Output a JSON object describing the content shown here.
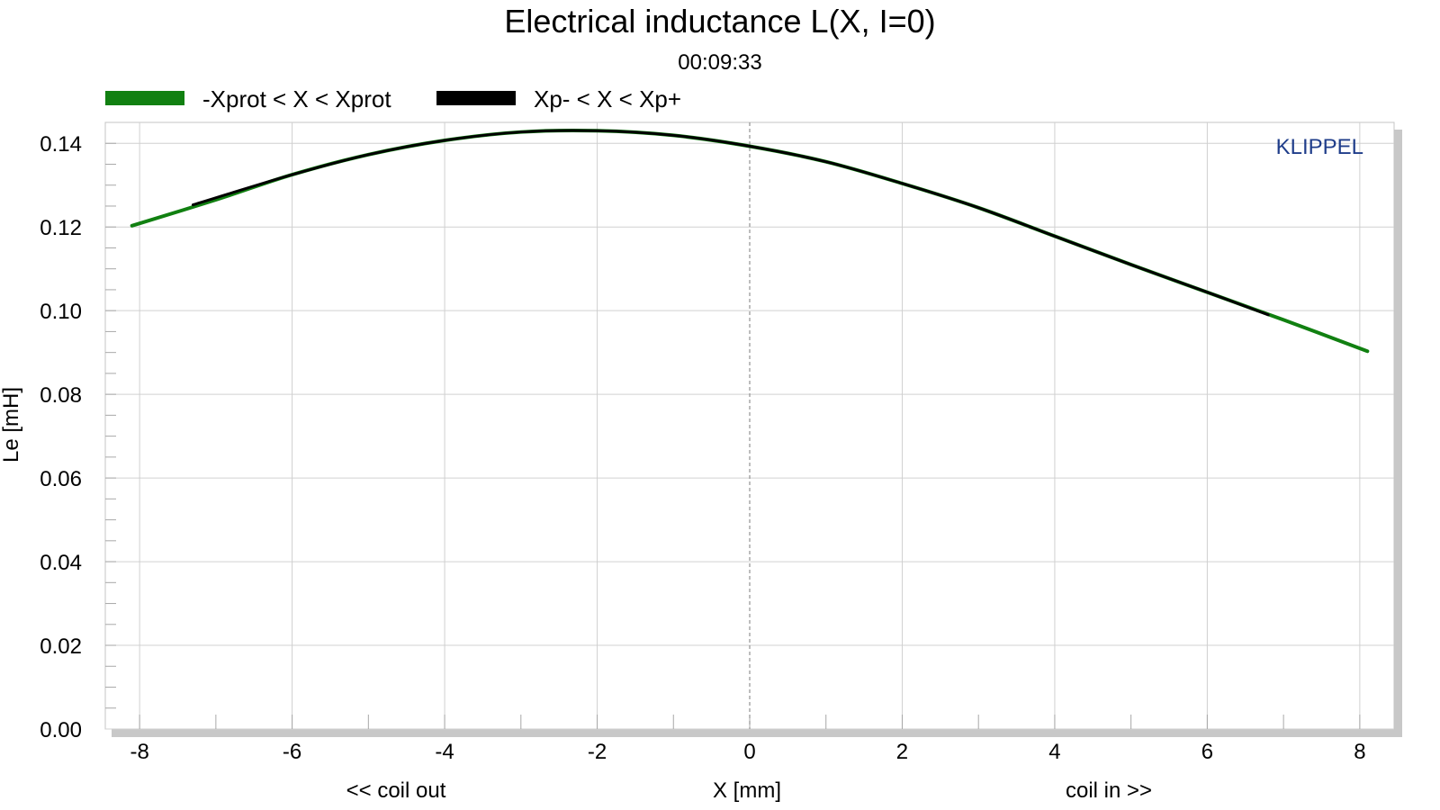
{
  "title": "Electrical inductance L(X, I=0)",
  "timestamp": "00:09:33",
  "brand": "KLIPPEL",
  "colors": {
    "green": "#118011",
    "black": "#000000",
    "grid": "#d0d0d0",
    "brand": "#1f3d8a"
  },
  "chart_data": {
    "type": "line",
    "xlabel": "X [mm]",
    "ylabel": "Le [mH]",
    "xlabel_left": "<< coil out",
    "xlabel_right": "coil in >>",
    "xlim": [
      -8.45,
      8.45
    ],
    "ylim": [
      0,
      0.145
    ],
    "x_ticks": [
      "-8",
      "-6",
      "-4",
      "-2",
      "0",
      "2",
      "4",
      "6",
      "8"
    ],
    "y_ticks": [
      "0.00",
      "0.02",
      "0.04",
      "0.06",
      "0.08",
      "0.10",
      "0.12",
      "0.14"
    ],
    "grid": true,
    "legend": "top-left",
    "series": [
      {
        "name": "-Xprot < X < Xprot",
        "color": "#118011",
        "x": [
          -8.1,
          -7.0,
          -6.0,
          -5.0,
          -4.0,
          -3.0,
          -2.0,
          -1.0,
          0.0,
          1.0,
          2.0,
          3.0,
          4.0,
          5.0,
          6.0,
          7.0,
          8.1
        ],
        "y": [
          0.1203,
          0.1265,
          0.1325,
          0.1373,
          0.1407,
          0.1427,
          0.143,
          0.1419,
          0.1393,
          0.1356,
          0.1304,
          0.1246,
          0.1178,
          0.111,
          0.1044,
          0.0978,
          0.0903
        ]
      },
      {
        "name": "Xp- < X < Xp+",
        "color": "#000000",
        "x": [
          -7.3,
          -6.0,
          -5.0,
          -4.0,
          -3.0,
          -2.0,
          -1.0,
          0.0,
          1.0,
          2.0,
          3.0,
          4.0,
          5.0,
          6.0,
          6.8
        ],
        "y": [
          0.1253,
          0.1325,
          0.1373,
          0.1407,
          0.1427,
          0.143,
          0.1419,
          0.1393,
          0.1356,
          0.1304,
          0.1246,
          0.1178,
          0.111,
          0.1044,
          0.099
        ]
      }
    ]
  }
}
